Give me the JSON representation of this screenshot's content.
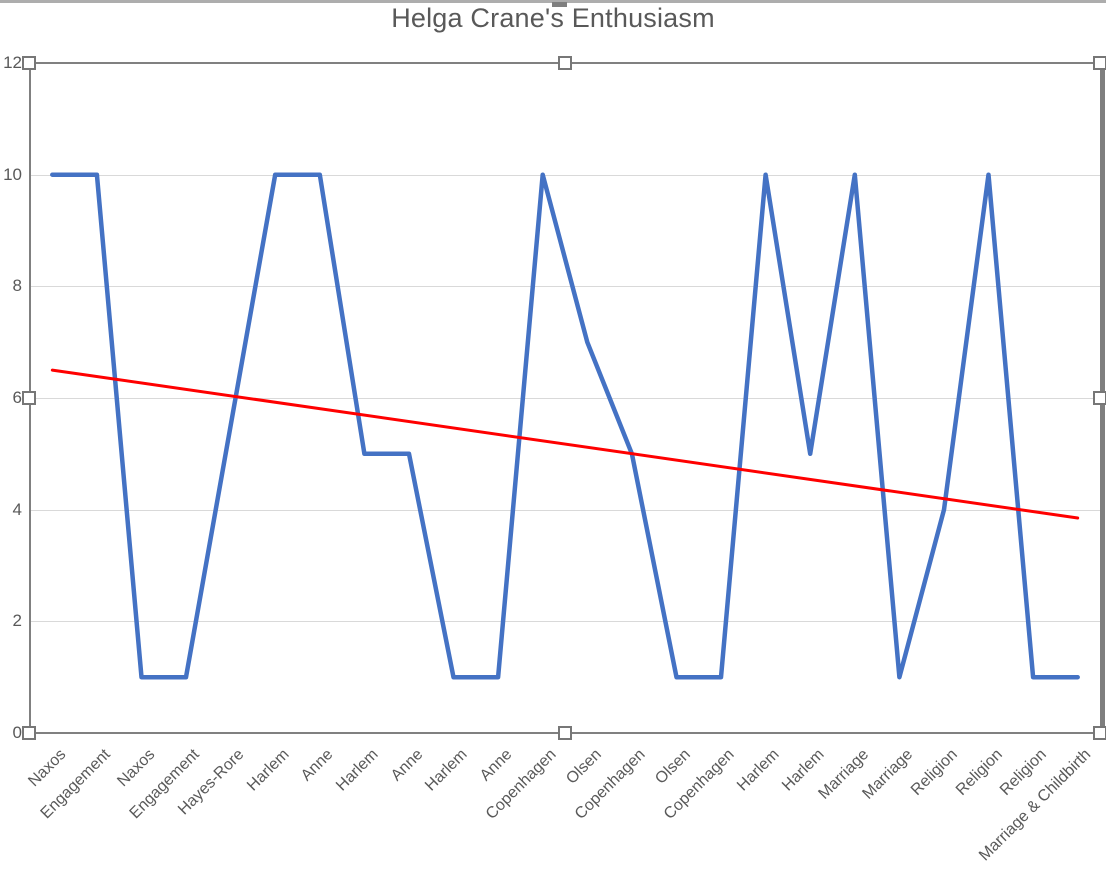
{
  "chart_data": {
    "type": "line",
    "title": "Helga Crane's Enthusiasm",
    "categories": [
      "Naxos",
      "Engagement",
      "Naxos",
      "Engagement",
      "Hayes-Rore",
      "Harlem",
      "Anne",
      "Harlem",
      "Anne",
      "Harlem",
      "Anne",
      "Copenhagen",
      "Olsen",
      "Copenhagen",
      "Olsen",
      "Copenhagen",
      "Harlem",
      "Harlem",
      "Marriage",
      "Marriage",
      "Religion",
      "Religion",
      "Religion",
      "Marriage & Childbirth"
    ],
    "series": [
      {
        "name": "Enthusiasm",
        "values": [
          10,
          10,
          1,
          1,
          5.5,
          10,
          10,
          5,
          5,
          1,
          1,
          10,
          7,
          5,
          1,
          1,
          10,
          5,
          10,
          1,
          4,
          10,
          1,
          1
        ],
        "color": "#4472C4",
        "stroke_width": 4.5
      }
    ],
    "trendline": {
      "type": "linear",
      "start_value": 6.5,
      "end_value": 3.85,
      "color": "#FF0000",
      "stroke_width": 3
    },
    "xlabel": "",
    "ylabel": "",
    "ylim": [
      0,
      12
    ],
    "yticks": [
      0,
      2,
      4,
      6,
      8,
      10,
      12
    ],
    "grid": true,
    "legend_position": "none",
    "x_label_rotation_deg": 45
  },
  "colors": {
    "series_line": "#4472C4",
    "trendline": "#FF0000",
    "gridline": "#d9d9d9",
    "axis_line": "#808080",
    "text": "#595959",
    "selection_handle_border": "#777777"
  }
}
